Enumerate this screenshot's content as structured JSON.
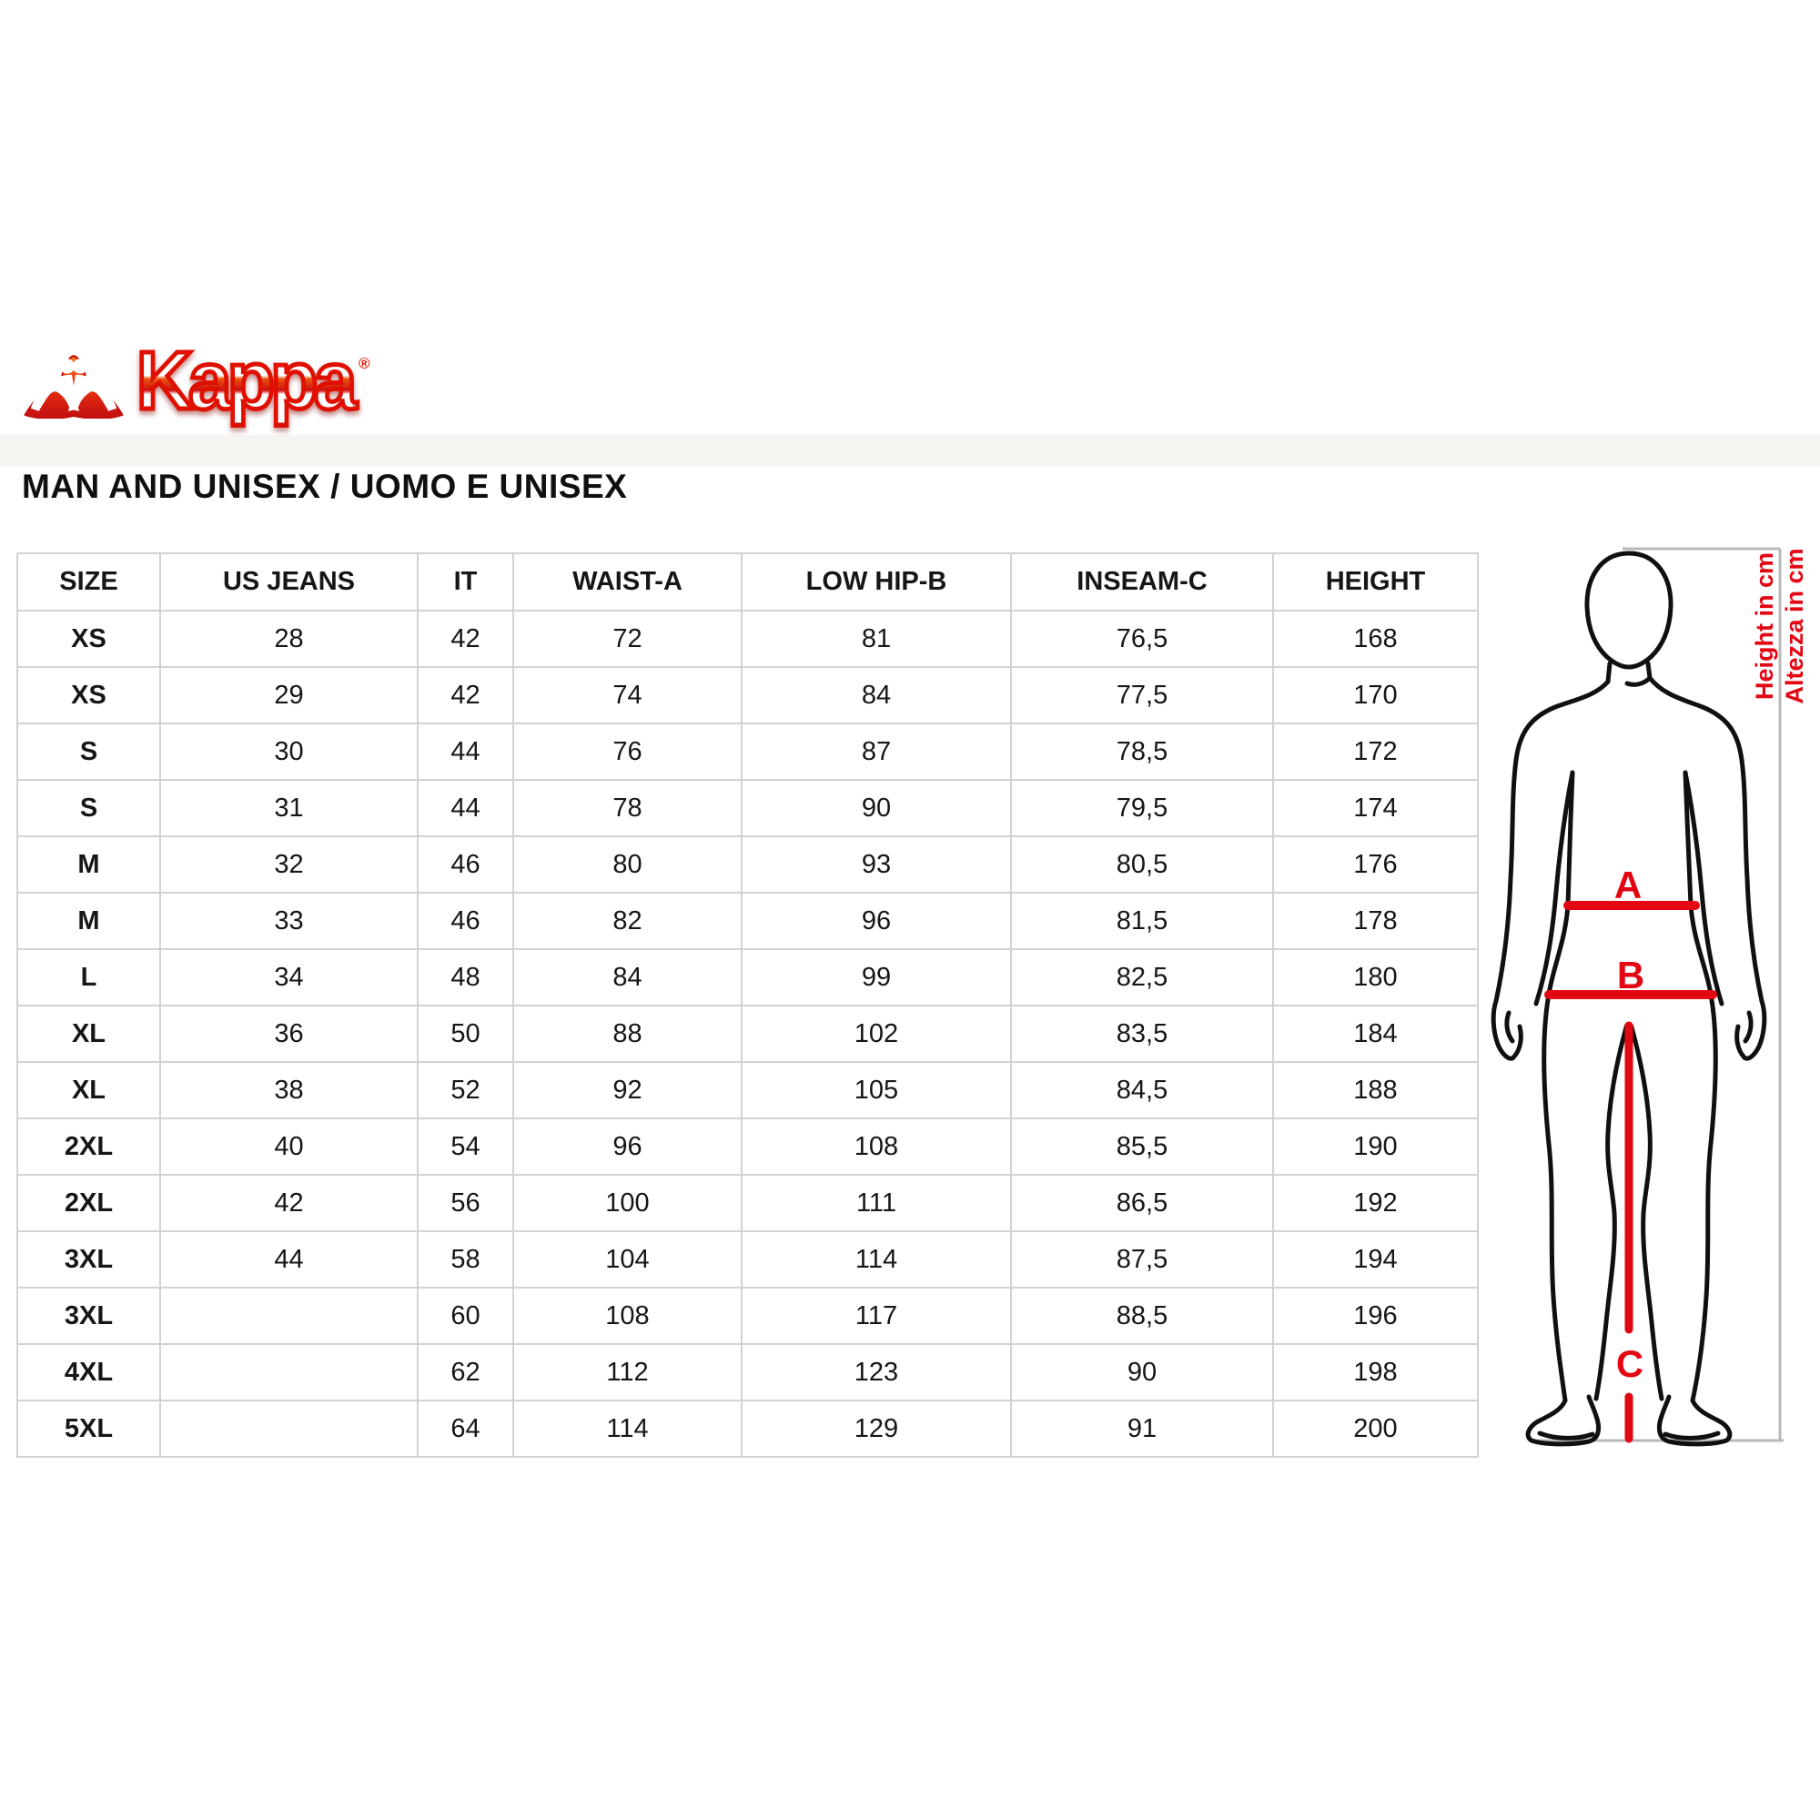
{
  "brand": {
    "logo_text": "Kappa",
    "registered_mark": "®",
    "omini_icon": "kappa-back-to-back-sitting-figures"
  },
  "title": "MAN AND UNISEX / UOMO E UNISEX",
  "table": {
    "columns": [
      "SIZE",
      "US JEANS",
      "IT",
      "WAIST-A",
      "LOW HIP-B",
      "INSEAM-C",
      "HEIGHT"
    ],
    "rows": [
      [
        "XS",
        "28",
        "42",
        "72",
        "81",
        "76,5",
        "168"
      ],
      [
        "XS",
        "29",
        "42",
        "74",
        "84",
        "77,5",
        "170"
      ],
      [
        "S",
        "30",
        "44",
        "76",
        "87",
        "78,5",
        "172"
      ],
      [
        "S",
        "31",
        "44",
        "78",
        "90",
        "79,5",
        "174"
      ],
      [
        "M",
        "32",
        "46",
        "80",
        "93",
        "80,5",
        "176"
      ],
      [
        "M",
        "33",
        "46",
        "82",
        "96",
        "81,5",
        "178"
      ],
      [
        "L",
        "34",
        "48",
        "84",
        "99",
        "82,5",
        "180"
      ],
      [
        "XL",
        "36",
        "50",
        "88",
        "102",
        "83,5",
        "184"
      ],
      [
        "XL",
        "38",
        "52",
        "92",
        "105",
        "84,5",
        "188"
      ],
      [
        "2XL",
        "40",
        "54",
        "96",
        "108",
        "85,5",
        "190"
      ],
      [
        "2XL",
        "42",
        "56",
        "100",
        "111",
        "86,5",
        "192"
      ],
      [
        "3XL",
        "44",
        "58",
        "104",
        "114",
        "87,5",
        "194"
      ],
      [
        "3XL",
        "",
        "60",
        "108",
        "117",
        "88,5",
        "196"
      ],
      [
        "4XL",
        "",
        "62",
        "112",
        "123",
        "90",
        "198"
      ],
      [
        "5XL",
        "",
        "64",
        "114",
        "129",
        "91",
        "200"
      ]
    ]
  },
  "figure": {
    "labels": {
      "waist": "A",
      "low_hip": "B",
      "inseam": "C"
    },
    "height_note_en": "Height in cm",
    "height_note_it": "Altezza in cm"
  },
  "colors": {
    "accent_red": "#e30613",
    "logo_red": "#e01000",
    "grid_gray": "#d2d2d2",
    "frame_gray": "#b9b9b9"
  }
}
